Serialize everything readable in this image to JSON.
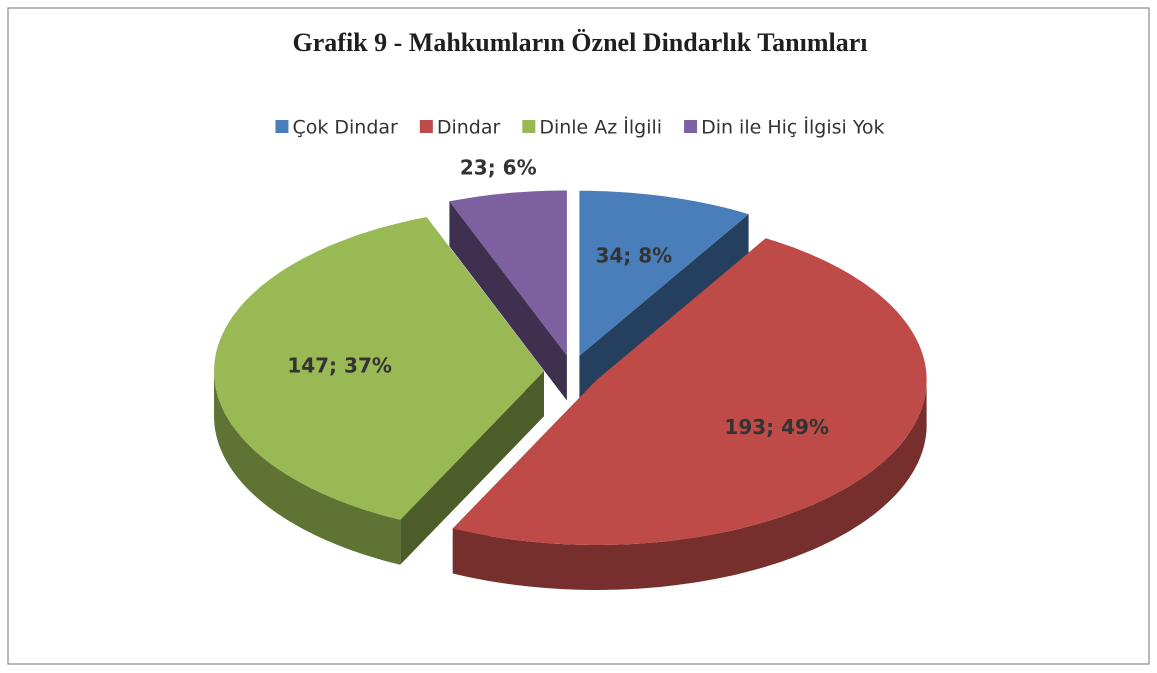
{
  "chart_data": {
    "type": "pie3d",
    "title": "Grafik  9 - Mahkumların Öznel Dindarlık Tanımları",
    "categories": [
      "Çok Dindar",
      "Dindar",
      "Dinle Az İlgili",
      "Din ile Hiç İlgisi Yok"
    ],
    "values": [
      34,
      193,
      147,
      23
    ],
    "value_labels": [
      "34; 8%",
      "193; 49%",
      "147; 37%",
      "23; 6%"
    ],
    "colors": [
      "#4a7ebb",
      "#be4b48",
      "#98b954",
      "#7d60a0"
    ],
    "legend": "top"
  }
}
